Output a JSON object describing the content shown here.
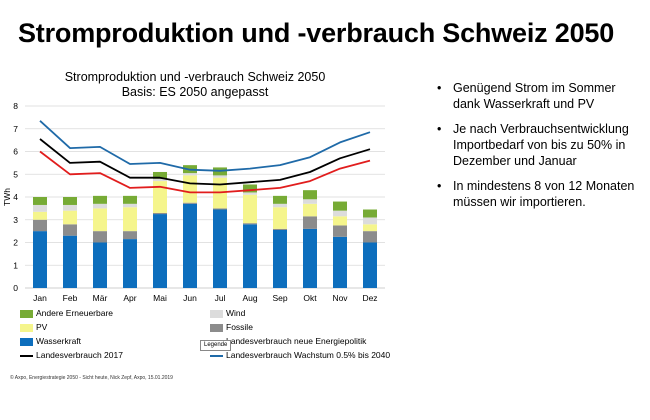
{
  "slide": {
    "title": "Stromproduktion und -verbrauch Schweiz 2050",
    "footer": "© Axpo, Energiestrategie 2050 - Sicht heute, Nick Zepf, Axpo, 15.01.2019",
    "tooltip": "Legende",
    "bullets": [
      "Genügend Strom im Sommer dank Wasserkraft und PV",
      "Je nach  Verbrauchsentwicklung Importbedarf von bis zu 50% in Dezember und Januar",
      "In mindestens 8 von 12 Monaten müssen wir importieren."
    ]
  },
  "colors": {
    "wasserkraft": "#0d6ebd",
    "fossile": "#8c8c8c",
    "pv": "#f5f58c",
    "wind": "#dcdcdc",
    "andere": "#77ab35",
    "landes2017": "#000000",
    "neue_energiepolitik": "#e11d1d",
    "wachstum": "#1f6aa8",
    "grid": "#d9d9d9"
  },
  "chart_data": {
    "type": "bar",
    "title": "Stromproduktion und -verbrauch Schweiz 2050",
    "subtitle": "Basis: ES 2050 angepasst",
    "ylabel": "TWh",
    "ylim": [
      0,
      8
    ],
    "yticks": [
      "0",
      "1",
      "2",
      "3",
      "4",
      "5",
      "6",
      "7",
      "8"
    ],
    "categories": [
      "Jan",
      "Feb",
      "Mär",
      "Apr",
      "Mai",
      "Jun",
      "Jul",
      "Aug",
      "Sep",
      "Okt",
      "Nov",
      "Dez"
    ],
    "stacked": true,
    "series": [
      {
        "name": "Wasserkraft",
        "color_key": "wasserkraft",
        "values": [
          2.5,
          2.3,
          2.0,
          2.15,
          3.25,
          3.7,
          3.45,
          2.8,
          2.55,
          2.6,
          2.25,
          2.0
        ]
      },
      {
        "name": "Fossile",
        "color_key": "fossile",
        "values": [
          0.5,
          0.5,
          0.5,
          0.35,
          0.05,
          0.05,
          0.05,
          0.05,
          0.05,
          0.55,
          0.5,
          0.5
        ]
      },
      {
        "name": "PV",
        "color_key": "pv",
        "values": [
          0.35,
          0.6,
          1.0,
          1.05,
          1.4,
          1.2,
          1.35,
          1.25,
          0.95,
          0.55,
          0.4,
          0.3
        ]
      },
      {
        "name": "Wind",
        "color_key": "wind",
        "values": [
          0.3,
          0.25,
          0.2,
          0.15,
          0.1,
          0.1,
          0.1,
          0.1,
          0.15,
          0.2,
          0.25,
          0.3
        ]
      },
      {
        "name": "Andere Erneuerbare",
        "color_key": "andere",
        "values": [
          0.35,
          0.35,
          0.35,
          0.35,
          0.3,
          0.35,
          0.35,
          0.35,
          0.35,
          0.4,
          0.4,
          0.35
        ]
      }
    ],
    "lines": [
      {
        "name": "Landesverbrauch 2017",
        "color_key": "landes2017",
        "values": [
          6.55,
          5.5,
          5.55,
          4.85,
          4.85,
          4.6,
          4.55,
          4.65,
          4.75,
          5.1,
          5.7,
          6.1
        ]
      },
      {
        "name": "Landesverbrauch neue Energiepolitik",
        "color_key": "neue_energiepolitik",
        "values": [
          6.0,
          5.0,
          5.05,
          4.4,
          4.45,
          4.2,
          4.2,
          4.3,
          4.4,
          4.7,
          5.25,
          5.6
        ]
      },
      {
        "name": "Landesverbrauch Wachstum 0.5% bis 2040",
        "color_key": "wachstum",
        "values": [
          7.35,
          6.15,
          6.2,
          5.45,
          5.5,
          5.2,
          5.15,
          5.25,
          5.4,
          5.75,
          6.4,
          6.85
        ]
      }
    ],
    "legend": {
      "position": "bottom",
      "order": [
        "Andere Erneuerbare",
        "Wind",
        "PV",
        "Fossile",
        "Wasserkraft",
        "Landesverbrauch neue Energiepolitik",
        "Landesverbrauch 2017",
        "Landesverbrauch Wachstum 0.5% bis 2040"
      ]
    },
    "grid": true
  }
}
